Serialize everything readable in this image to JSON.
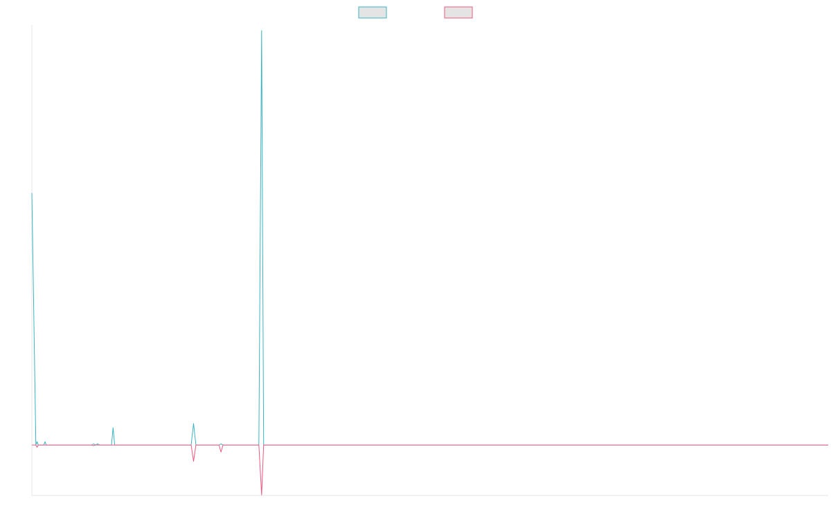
{
  "chart_data": {
    "type": "line",
    "legend": {
      "position": "top-center",
      "entries": [
        {
          "label": "",
          "stroke": "#36b5c0",
          "fill": "#e4e4e4"
        },
        {
          "label": "",
          "stroke": "#f0557f",
          "fill": "#e4e4e4"
        }
      ]
    },
    "grid": false,
    "ticks_visible": false,
    "xlim": [
      0,
      200
    ],
    "ylim": [
      -180,
      1500
    ],
    "series": [
      {
        "color": "#36b5c0",
        "points": [
          [
            0,
            900
          ],
          [
            1,
            0
          ],
          [
            1.3,
            12
          ],
          [
            1.6,
            0
          ],
          [
            3,
            0
          ],
          [
            3.3,
            12
          ],
          [
            3.6,
            0
          ],
          [
            15,
            0
          ],
          [
            15.5,
            4
          ],
          [
            16,
            0
          ],
          [
            16.5,
            4
          ],
          [
            17,
            0
          ],
          [
            20,
            0
          ],
          [
            20.4,
            62
          ],
          [
            20.8,
            0
          ],
          [
            40,
            0
          ],
          [
            40.6,
            77
          ],
          [
            41.2,
            0
          ],
          [
            47,
            0
          ],
          [
            47.5,
            4
          ],
          [
            48,
            0
          ],
          [
            57,
            0
          ],
          [
            57.7,
            1480
          ],
          [
            58.2,
            0
          ],
          [
            200,
            0
          ]
        ]
      },
      {
        "color": "#f0557f",
        "points": [
          [
            0,
            0
          ],
          [
            1,
            0
          ],
          [
            1.3,
            -8
          ],
          [
            1.6,
            0
          ],
          [
            15,
            0
          ],
          [
            15.5,
            -2
          ],
          [
            16,
            0
          ],
          [
            40,
            0
          ],
          [
            40.6,
            -58
          ],
          [
            41.2,
            0
          ],
          [
            47,
            0
          ],
          [
            47.5,
            -25
          ],
          [
            48,
            0
          ],
          [
            57,
            0
          ],
          [
            57.7,
            -178
          ],
          [
            58.2,
            0
          ],
          [
            200,
            0
          ]
        ]
      }
    ]
  }
}
